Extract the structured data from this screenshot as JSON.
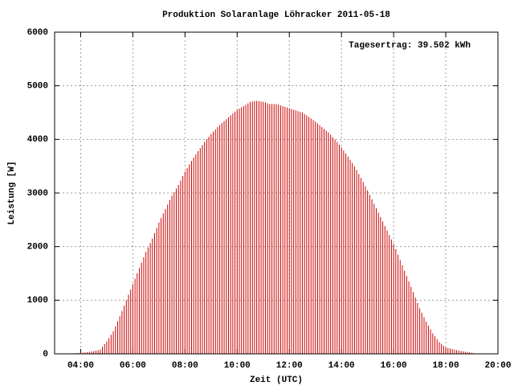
{
  "chart_data": {
    "type": "impulse",
    "title": "Produktion Solaranlage Löhracker 2011-05-18",
    "annotation": "Tagesertrag: 39.502 kWh",
    "xlabel": "Zeit (UTC)",
    "ylabel": "Leistung [W]",
    "color": "#cc0000",
    "grid": true,
    "xlim": [
      180,
      1200
    ],
    "ylim": [
      0,
      6000
    ],
    "yticks": [
      0,
      1000,
      2000,
      3000,
      4000,
      5000,
      6000
    ],
    "xticks": [
      {
        "value": 240,
        "label": "04:00"
      },
      {
        "value": 360,
        "label": "06:00"
      },
      {
        "value": 480,
        "label": "08:00"
      },
      {
        "value": 600,
        "label": "10:00"
      },
      {
        "value": 720,
        "label": "12:00"
      },
      {
        "value": 840,
        "label": "14:00"
      },
      {
        "value": 960,
        "label": "16:00"
      },
      {
        "value": 1080,
        "label": "18:00"
      },
      {
        "value": 1200,
        "label": "20:00"
      }
    ],
    "x": [
      225,
      230,
      235,
      240,
      245,
      250,
      255,
      260,
      265,
      270,
      275,
      280,
      285,
      290,
      295,
      300,
      305,
      310,
      315,
      320,
      325,
      330,
      335,
      340,
      345,
      350,
      355,
      360,
      365,
      370,
      375,
      380,
      385,
      390,
      395,
      400,
      405,
      410,
      415,
      420,
      425,
      430,
      435,
      440,
      445,
      450,
      455,
      460,
      465,
      470,
      475,
      480,
      485,
      490,
      495,
      500,
      505,
      510,
      515,
      520,
      525,
      530,
      535,
      540,
      545,
      550,
      555,
      560,
      565,
      570,
      575,
      580,
      585,
      590,
      595,
      600,
      605,
      610,
      615,
      620,
      625,
      630,
      635,
      640,
      645,
      650,
      655,
      660,
      665,
      670,
      675,
      680,
      685,
      690,
      695,
      700,
      705,
      710,
      715,
      720,
      725,
      730,
      735,
      740,
      745,
      750,
      755,
      760,
      765,
      770,
      775,
      780,
      785,
      790,
      795,
      800,
      805,
      810,
      815,
      820,
      825,
      830,
      835,
      840,
      845,
      850,
      855,
      860,
      865,
      870,
      875,
      880,
      885,
      890,
      895,
      900,
      905,
      910,
      915,
      920,
      925,
      930,
      935,
      940,
      945,
      950,
      955,
      960,
      965,
      970,
      975,
      980,
      985,
      990,
      995,
      1000,
      1005,
      1010,
      1015,
      1020,
      1025,
      1030,
      1035,
      1040,
      1045,
      1050,
      1055,
      1060,
      1065,
      1070,
      1075,
      1080,
      1085,
      1090,
      1095,
      1100,
      1105,
      1110,
      1115,
      1120,
      1125,
      1130,
      1135,
      1140,
      1145
    ],
    "values": [
      10,
      13,
      17,
      20,
      23,
      27,
      30,
      37,
      43,
      50,
      60,
      70,
      80,
      130,
      180,
      230,
      293,
      357,
      420,
      513,
      607,
      700,
      800,
      900,
      1000,
      1100,
      1200,
      1300,
      1400,
      1500,
      1600,
      1700,
      1800,
      1900,
      1983,
      2067,
      2150,
      2250,
      2350,
      2450,
      2533,
      2617,
      2700,
      2783,
      2867,
      2950,
      3017,
      3083,
      3150,
      3233,
      3317,
      3400,
      3467,
      3533,
      3600,
      3660,
      3720,
      3780,
      3837,
      3893,
      3950,
      4000,
      4050,
      4100,
      4143,
      4187,
      4230,
      4267,
      4303,
      4340,
      4377,
      4413,
      4450,
      4483,
      4517,
      4550,
      4573,
      4597,
      4620,
      4647,
      4673,
      4700,
      4707,
      4713,
      4720,
      4713,
      4707,
      4700,
      4687,
      4673,
      4660,
      4660,
      4660,
      4660,
      4647,
      4633,
      4620,
      4607,
      4593,
      4580,
      4567,
      4553,
      4540,
      4527,
      4513,
      4500,
      4473,
      4447,
      4420,
      4390,
      4360,
      4330,
      4297,
      4263,
      4230,
      4197,
      4163,
      4130,
      4087,
      4043,
      4000,
      3950,
      3900,
      3850,
      3793,
      3737,
      3680,
      3620,
      3560,
      3500,
      3427,
      3353,
      3280,
      3203,
      3127,
      3050,
      2967,
      2883,
      2800,
      2717,
      2633,
      2550,
      2467,
      2383,
      2300,
      2217,
      2133,
      2050,
      1950,
      1850,
      1750,
      1650,
      1550,
      1450,
      1350,
      1250,
      1150,
      1050,
      950,
      850,
      767,
      683,
      600,
      527,
      453,
      380,
      327,
      273,
      220,
      187,
      153,
      120,
      110,
      100,
      90,
      80,
      70,
      60,
      53,
      47,
      40,
      33,
      27,
      20,
      10
    ]
  }
}
